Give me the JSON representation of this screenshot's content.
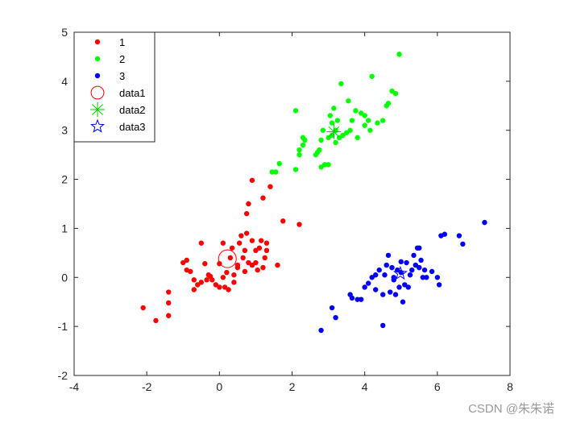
{
  "watermark": "CSDN @朱朱诺",
  "chart_data": {
    "type": "scatter",
    "title": "",
    "xlabel": "",
    "ylabel": "",
    "xlim": [
      -4,
      8
    ],
    "ylim": [
      -2,
      5
    ],
    "xticks": [
      -4,
      -2,
      0,
      2,
      4,
      6,
      8
    ],
    "yticks": [
      -2,
      -1,
      0,
      1,
      2,
      3,
      4,
      5
    ],
    "grid": false,
    "legend_position": "top-left",
    "series": [
      {
        "name": "1",
        "color": "#ff0000",
        "marker": "dot",
        "points": [
          [
            -2.1,
            -0.62
          ],
          [
            -1.75,
            -0.88
          ],
          [
            -1.4,
            -0.3
          ],
          [
            -1.4,
            -0.52
          ],
          [
            -1.4,
            -0.78
          ],
          [
            -1.0,
            0.3
          ],
          [
            -0.9,
            0.35
          ],
          [
            -0.9,
            0.15
          ],
          [
            -0.8,
            0.12
          ],
          [
            -0.7,
            -0.05
          ],
          [
            -0.7,
            -0.25
          ],
          [
            -0.6,
            -0.15
          ],
          [
            -0.5,
            0.7
          ],
          [
            -0.5,
            -0.1
          ],
          [
            -0.4,
            0.28
          ],
          [
            -0.35,
            -0.05
          ],
          [
            -0.3,
            0.05
          ],
          [
            -0.25,
            0.02
          ],
          [
            -0.2,
            -0.05
          ],
          [
            -0.1,
            -0.15
          ],
          [
            0.0,
            0.28
          ],
          [
            0.0,
            -0.2
          ],
          [
            0.1,
            0.0
          ],
          [
            0.1,
            0.7
          ],
          [
            0.15,
            -0.2
          ],
          [
            0.2,
            0.1
          ],
          [
            0.25,
            -0.25
          ],
          [
            0.3,
            0.4
          ],
          [
            0.35,
            0.6
          ],
          [
            0.4,
            0.05
          ],
          [
            0.4,
            -0.1
          ],
          [
            0.5,
            0.25
          ],
          [
            0.5,
            0.2
          ],
          [
            0.55,
            0.7
          ],
          [
            0.6,
            0.85
          ],
          [
            0.65,
            0.4
          ],
          [
            0.7,
            0.55
          ],
          [
            0.7,
            0.12
          ],
          [
            0.75,
            0.9
          ],
          [
            0.75,
            1.3
          ],
          [
            0.8,
            1.5
          ],
          [
            0.8,
            0.3
          ],
          [
            0.9,
            0.75
          ],
          [
            0.9,
            0.25
          ],
          [
            0.9,
            1.98
          ],
          [
            1.0,
            0.55
          ],
          [
            1.0,
            0.3
          ],
          [
            1.05,
            0.15
          ],
          [
            1.1,
            0.6
          ],
          [
            1.15,
            0.75
          ],
          [
            1.2,
            0.2
          ],
          [
            1.2,
            1.62
          ],
          [
            1.25,
            0.4
          ],
          [
            1.3,
            0.55
          ],
          [
            1.3,
            0.7
          ],
          [
            1.4,
            1.85
          ],
          [
            1.6,
            0.25
          ],
          [
            1.75,
            1.15
          ],
          [
            2.2,
            1.08
          ]
        ]
      },
      {
        "name": "2",
        "color": "#00ff00",
        "marker": "dot",
        "points": [
          [
            1.45,
            2.15
          ],
          [
            1.55,
            2.15
          ],
          [
            1.65,
            2.32
          ],
          [
            2.1,
            2.2
          ],
          [
            2.1,
            3.4
          ],
          [
            2.2,
            2.5
          ],
          [
            2.2,
            2.6
          ],
          [
            2.3,
            2.7
          ],
          [
            2.3,
            2.85
          ],
          [
            2.35,
            2.8
          ],
          [
            2.65,
            2.5
          ],
          [
            2.7,
            2.55
          ],
          [
            2.75,
            2.6
          ],
          [
            2.8,
            2.25
          ],
          [
            2.8,
            2.8
          ],
          [
            2.85,
            3.0
          ],
          [
            2.9,
            2.3
          ],
          [
            3.0,
            2.3
          ],
          [
            3.0,
            2.85
          ],
          [
            3.05,
            3.3
          ],
          [
            3.1,
            3.15
          ],
          [
            3.1,
            2.9
          ],
          [
            3.15,
            3.45
          ],
          [
            3.2,
            3.0
          ],
          [
            3.2,
            2.75
          ],
          [
            3.25,
            3.2
          ],
          [
            3.3,
            2.85
          ],
          [
            3.35,
            3.95
          ],
          [
            3.4,
            2.9
          ],
          [
            3.5,
            2.95
          ],
          [
            3.55,
            3.6
          ],
          [
            3.6,
            3.0
          ],
          [
            3.65,
            3.2
          ],
          [
            3.75,
            3.4
          ],
          [
            3.8,
            2.85
          ],
          [
            3.9,
            3.35
          ],
          [
            4.0,
            3.3
          ],
          [
            4.0,
            3.1
          ],
          [
            4.1,
            3.2
          ],
          [
            4.15,
            3.0
          ],
          [
            4.2,
            4.1
          ],
          [
            4.35,
            3.15
          ],
          [
            4.5,
            3.2
          ],
          [
            4.6,
            3.5
          ],
          [
            4.65,
            3.55
          ],
          [
            4.75,
            3.8
          ],
          [
            4.85,
            3.75
          ],
          [
            4.95,
            4.55
          ]
        ]
      },
      {
        "name": "3",
        "color": "#0000ff",
        "marker": "dot",
        "points": [
          [
            2.8,
            -1.08
          ],
          [
            3.1,
            -0.62
          ],
          [
            3.2,
            -0.82
          ],
          [
            3.6,
            -0.35
          ],
          [
            3.65,
            -0.42
          ],
          [
            3.8,
            -0.45
          ],
          [
            3.9,
            -0.45
          ],
          [
            4.0,
            -0.2
          ],
          [
            4.1,
            -0.12
          ],
          [
            4.2,
            0.0
          ],
          [
            4.3,
            -0.25
          ],
          [
            4.3,
            0.05
          ],
          [
            4.4,
            0.15
          ],
          [
            4.5,
            -0.98
          ],
          [
            4.5,
            -0.35
          ],
          [
            4.55,
            0.05
          ],
          [
            4.6,
            0.25
          ],
          [
            4.65,
            0.45
          ],
          [
            4.7,
            -0.3
          ],
          [
            4.75,
            0.2
          ],
          [
            4.8,
            -0.05
          ],
          [
            4.8,
            0.0
          ],
          [
            4.85,
            -0.35
          ],
          [
            4.9,
            0.15
          ],
          [
            4.95,
            -0.2
          ],
          [
            5.0,
            0.1
          ],
          [
            5.0,
            0.32
          ],
          [
            5.05,
            -0.5
          ],
          [
            5.1,
            -0.15
          ],
          [
            5.15,
            0.3
          ],
          [
            5.2,
            -0.2
          ],
          [
            5.25,
            0.05
          ],
          [
            5.3,
            0.15
          ],
          [
            5.35,
            0.45
          ],
          [
            5.4,
            0.25
          ],
          [
            5.45,
            0.6
          ],
          [
            5.5,
            0.2
          ],
          [
            5.5,
            0.6
          ],
          [
            5.55,
            0.35
          ],
          [
            5.6,
            0.0
          ],
          [
            5.65,
            0.15
          ],
          [
            5.7,
            0.0
          ],
          [
            5.85,
            0.12
          ],
          [
            6.0,
            0.0
          ],
          [
            6.05,
            -0.15
          ],
          [
            6.1,
            0.85
          ],
          [
            6.2,
            0.88
          ],
          [
            6.6,
            0.85
          ],
          [
            6.7,
            0.68
          ],
          [
            7.3,
            1.12
          ]
        ]
      },
      {
        "name": "data1",
        "color": "#ff0000",
        "marker": "circle",
        "points": [
          [
            0.22,
            0.38
          ]
        ]
      },
      {
        "name": "data2",
        "color": "#00cc00",
        "marker": "asterisk",
        "points": [
          [
            3.15,
            2.97
          ]
        ]
      },
      {
        "name": "data3",
        "color": "#0000ff",
        "marker": "pentagram",
        "points": [
          [
            4.98,
            0.08
          ]
        ]
      }
    ]
  }
}
